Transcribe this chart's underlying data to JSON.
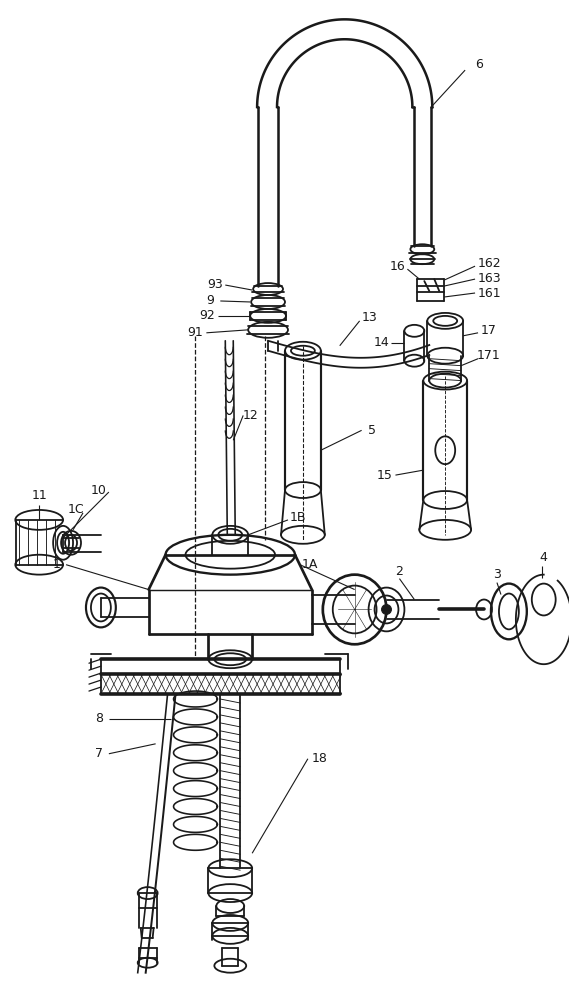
{
  "bg_color": "#ffffff",
  "lc": "#1a1a1a",
  "lw": 1.3
}
